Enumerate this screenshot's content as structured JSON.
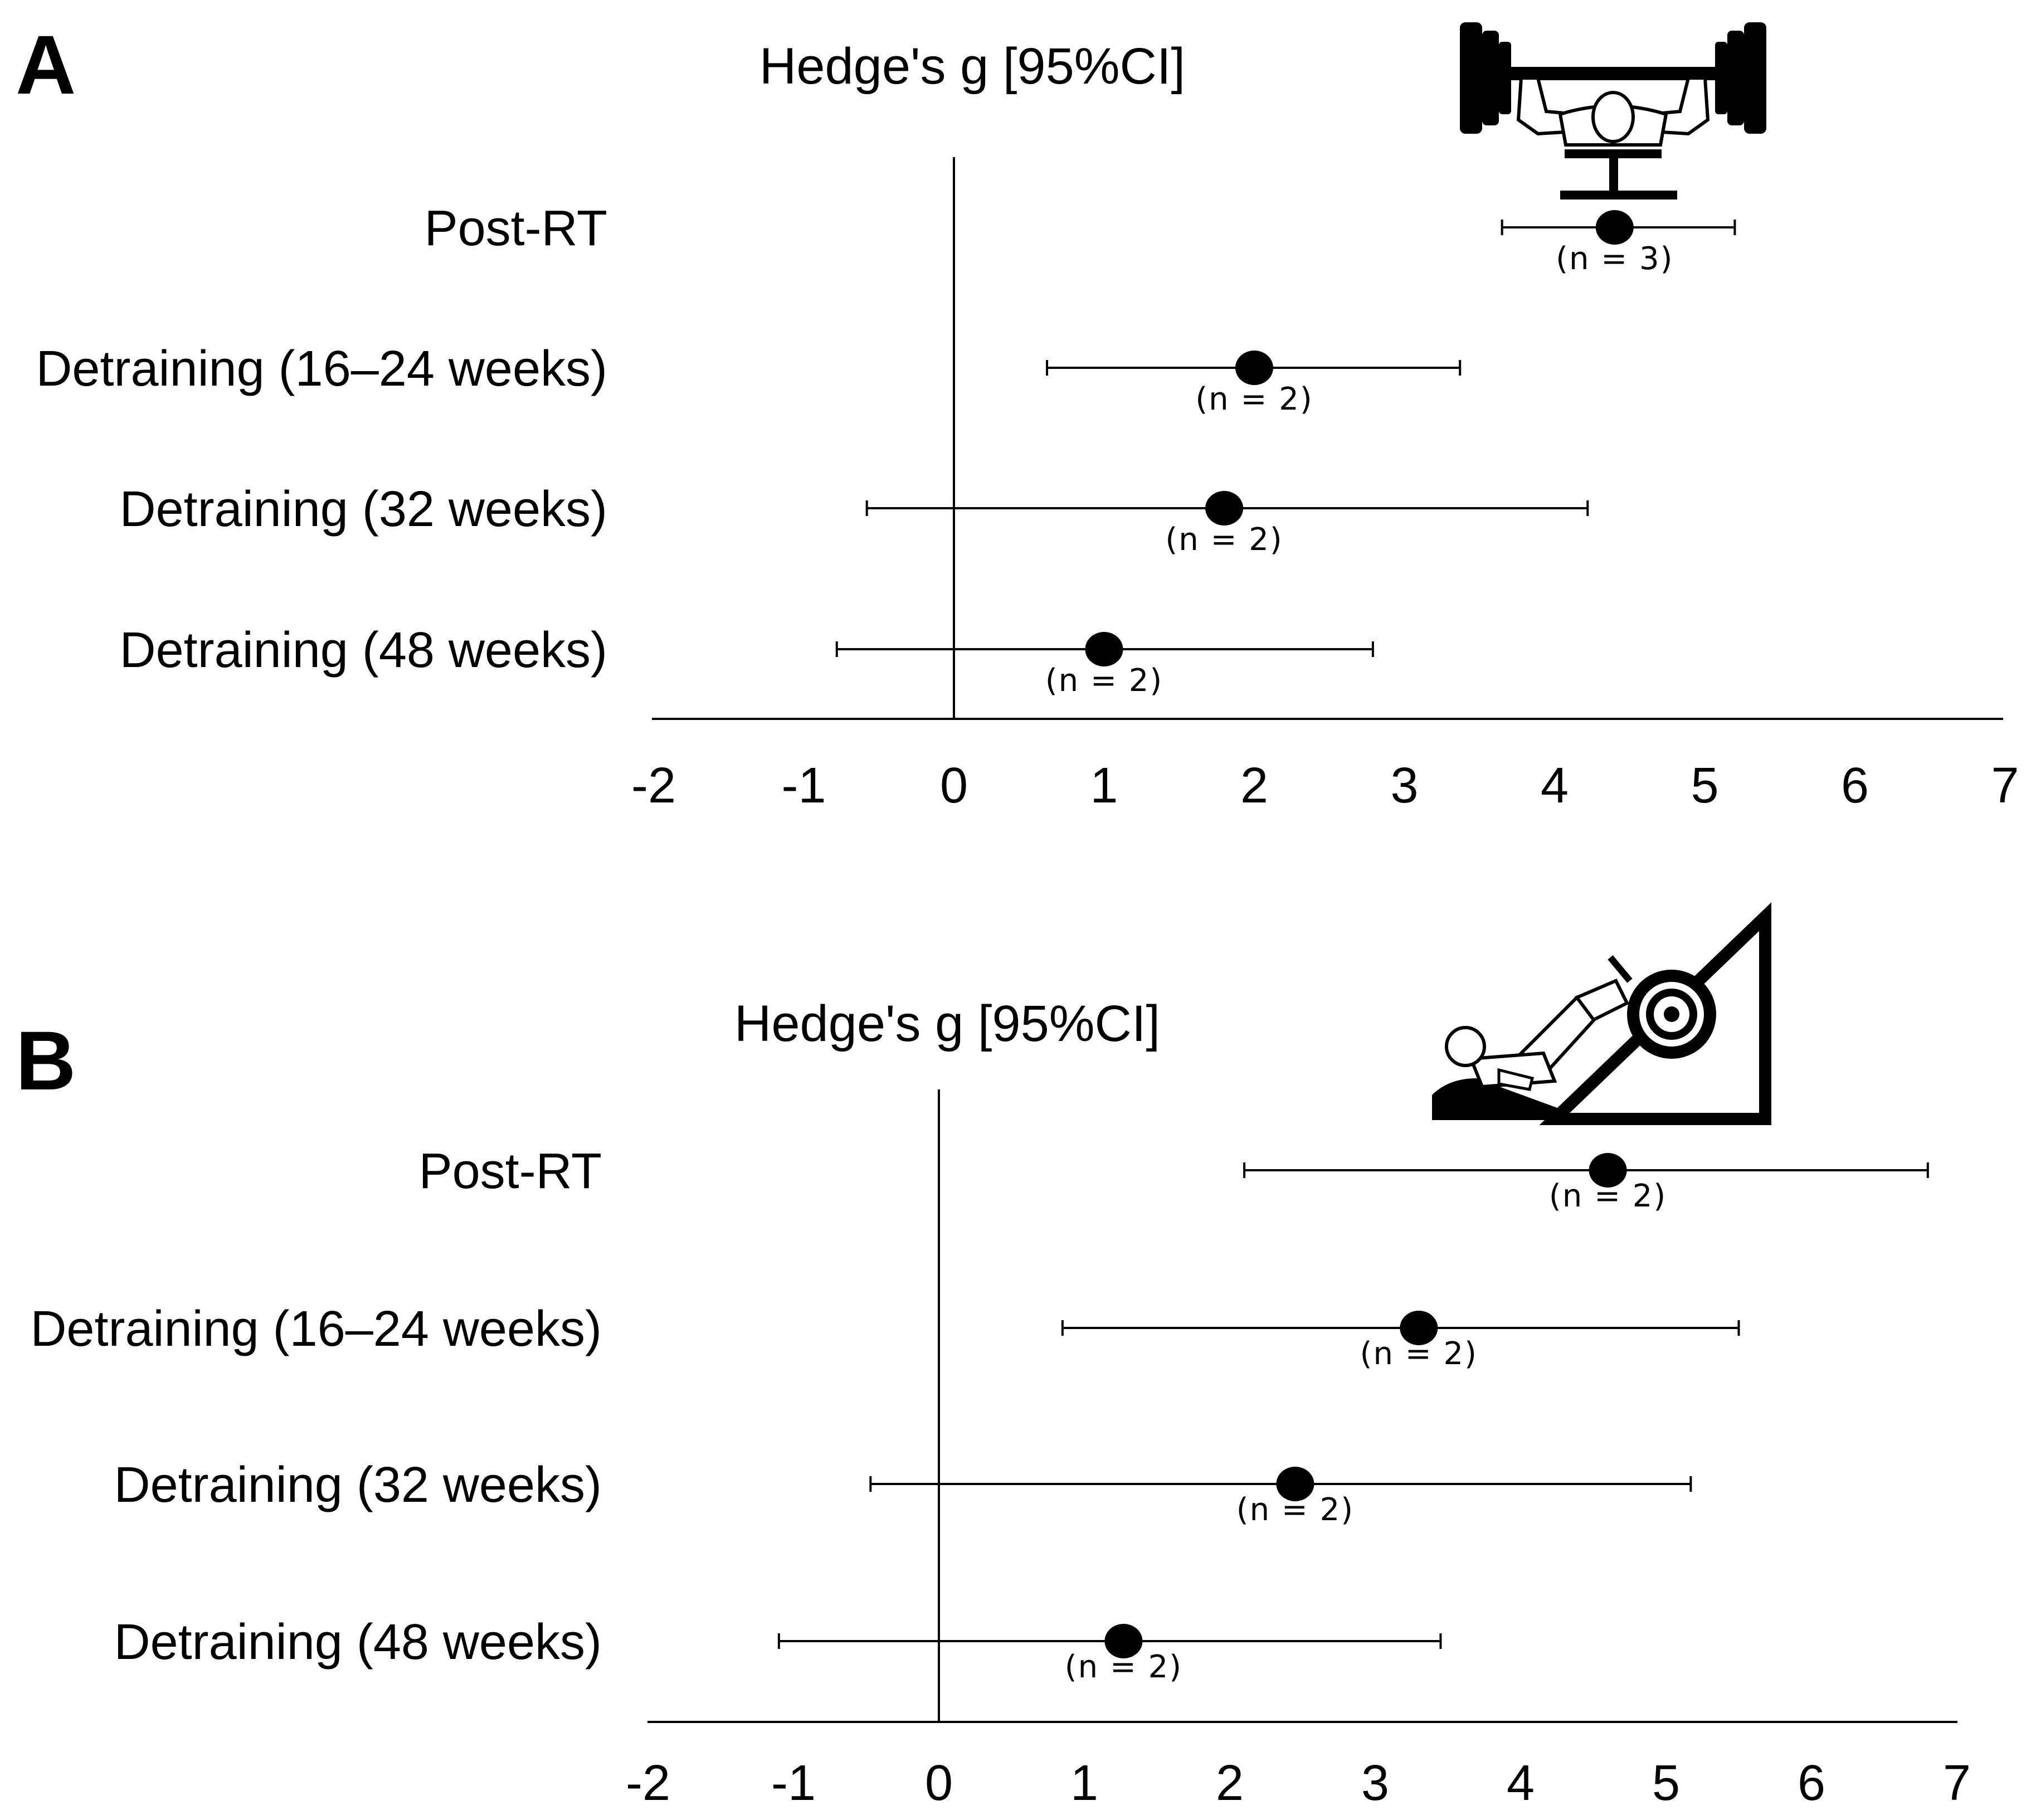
{
  "chart_data": [
    {
      "type": "forest",
      "panel": "A",
      "title": "Hedge's g [95%CI]",
      "icon": "bench-press-icon",
      "xlim": [
        -2,
        7
      ],
      "xticks": [
        "-2",
        "-1",
        "0",
        "1",
        "2",
        "3",
        "4",
        "5",
        "6",
        "7"
      ],
      "reference_line": 0,
      "grid": false,
      "rows": [
        {
          "label": "Post-RT",
          "estimate": 4.4,
          "ci_low": 3.65,
          "ci_high": 5.2,
          "n_label": "(n = 3)"
        },
        {
          "label": "Detraining (16–24 weeks)",
          "estimate": 2.0,
          "ci_low": 0.62,
          "ci_high": 3.37,
          "n_label": "(n = 2)"
        },
        {
          "label": "Detraining (32 weeks)",
          "estimate": 1.8,
          "ci_low": -0.58,
          "ci_high": 4.22,
          "n_label": "(n = 2)"
        },
        {
          "label": "Detraining (48 weeks)",
          "estimate": 1.0,
          "ci_low": -0.78,
          "ci_high": 2.79,
          "n_label": "(n = 2)"
        }
      ]
    },
    {
      "type": "forest",
      "panel": "B",
      "title": "Hedge's g [95%CI]",
      "icon": "leg-press-icon",
      "xlim": [
        -2,
        7
      ],
      "xticks": [
        "-2",
        "-1",
        "0",
        "1",
        "2",
        "3",
        "4",
        "5",
        "6",
        "7"
      ],
      "reference_line": 0,
      "grid": false,
      "rows": [
        {
          "label": "Post-RT",
          "estimate": 4.6,
          "ci_low": 2.1,
          "ci_high": 6.8,
          "n_label": "(n = 2)"
        },
        {
          "label": "Detraining (16–24 weeks)",
          "estimate": 3.3,
          "ci_low": 0.85,
          "ci_high": 5.5,
          "n_label": "(n = 2)"
        },
        {
          "label": "Detraining (32 weeks)",
          "estimate": 2.45,
          "ci_low": -0.47,
          "ci_high": 5.17,
          "n_label": "(n = 2)"
        },
        {
          "label": "Detraining (48 weeks)",
          "estimate": 1.27,
          "ci_low": -1.1,
          "ci_high": 3.45,
          "n_label": "(n = 2)"
        }
      ]
    }
  ],
  "colors": {
    "ink": "#000000",
    "background": "#ffffff",
    "figure_fill": "#ffffff"
  }
}
